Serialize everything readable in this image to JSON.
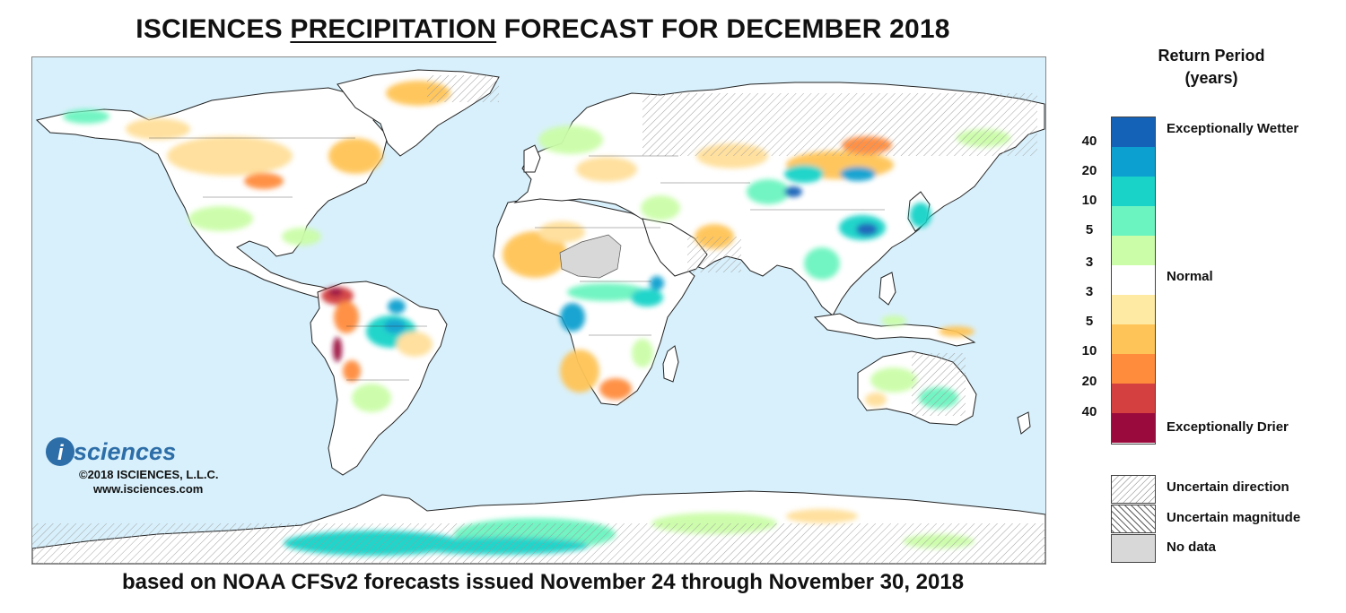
{
  "title": {
    "prefix": "ISCIENCES",
    "emphasis": "PRECIPITATION",
    "suffix": "FORECAST FOR DECEMBER 2018"
  },
  "subtitle": "based on NOAA CFSv2 forecasts issued November 24 through November 30, 2018",
  "branding": {
    "logo_letter": "i",
    "logo_word": "sciences",
    "copyright": "©2018 ISCIENCES, L.L.C.",
    "website": "www.isciences.com"
  },
  "legend": {
    "title_line1": "Return Period",
    "title_line2": "(years)",
    "scale": [
      {
        "color": "#1462b8"
      },
      {
        "color": "#0ba0cf"
      },
      {
        "color": "#19d3c8"
      },
      {
        "color": "#6cf4c0"
      },
      {
        "color": "#cbfda8"
      },
      {
        "color": "#ffffff"
      },
      {
        "color": "#ffeaa4"
      },
      {
        "color": "#ffc457"
      },
      {
        "color": "#ff8c3d"
      },
      {
        "color": "#d44040"
      },
      {
        "color": "#9b0a3c"
      }
    ],
    "ticks": [
      "40",
      "20",
      "10",
      "5",
      "3",
      "3",
      "5",
      "10",
      "20",
      "40"
    ],
    "labels": {
      "wetter": "Exceptionally Wetter",
      "normal": "Normal",
      "drier": "Exceptionally Drier"
    },
    "patterns": [
      {
        "label": "Uncertain direction"
      },
      {
        "label": "Uncertain magnitude"
      },
      {
        "label": "No data"
      }
    ]
  },
  "colors": {
    "ocean": "#d8f0fb",
    "land": "#ffffff",
    "no_data": "#d8d8d8"
  }
}
